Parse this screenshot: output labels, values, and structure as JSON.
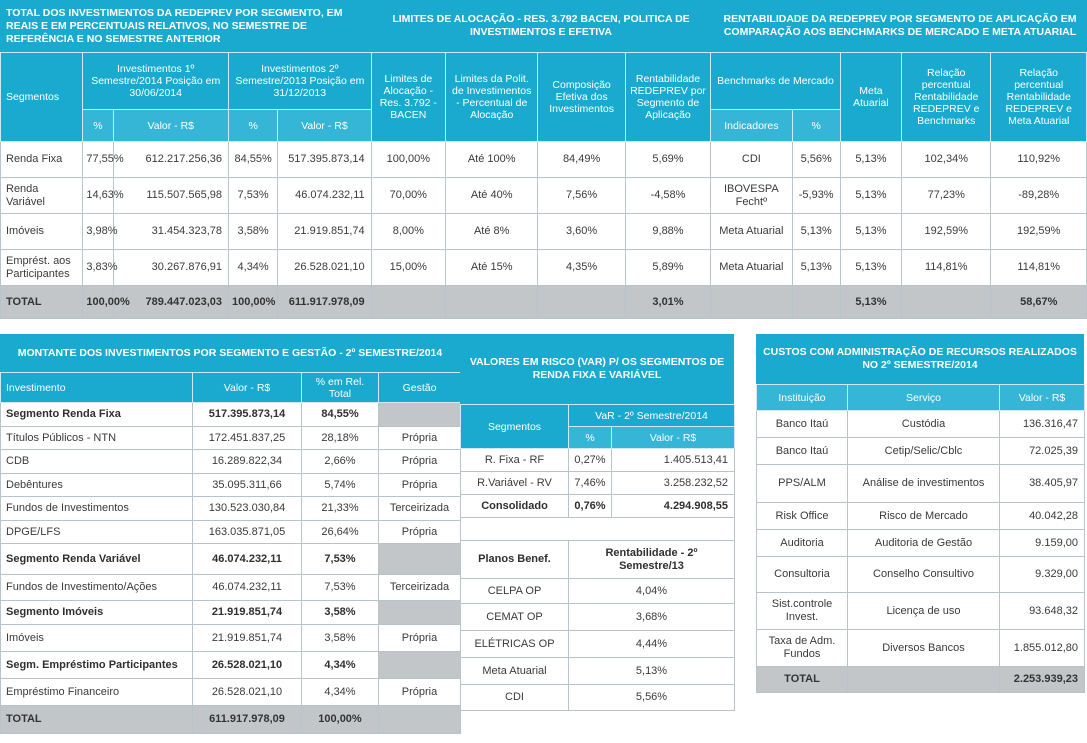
{
  "top": {
    "title1": "TOTAL DOS INVESTIMENTOS DA REDEPREV POR SEGMENTO, EM REAIS E EM PERCENTUAIS RELATIVOS, NO SEMESTRE DE REFERÊNCIA E NO SEMESTRE ANTERIOR",
    "title2": "LIMITES DE ALOCAÇÃO - RES. 3.792 BACEN, POLITICA DE INVESTIMENTOS E EFETIVA",
    "title3": "RENTABILIDADE DA REDEPREV POR SEGMENTO DE APLICAÇÃO EM COMPARAÇÃO AOS BENCHMARKS DE MERCADO E META ATUARIAL",
    "headers": {
      "segmentos": "Segmentos",
      "inv1": "Investimentos 1º Semestre/2014 Posição em 30/06/2014",
      "inv2": "Investimentos 2º Semestre/2013 Posição em 31/12/2013",
      "limites": "Limites de Alocação - Res. 3.792 - BACEN",
      "politica": "Limites da Polit. de Investimentos - Percentual de Alocação",
      "composicao": "Composição Efetiva dos Investimentos",
      "rentabilidade": "Rentabilidade REDEPREV por Segmento de Aplicação",
      "benchmarks": "Benchmarks de Mercado",
      "meta": "Meta Atuarial",
      "rel_bench": "Relação percentual Rentabilidade REDEPREV e Benchmarks",
      "rel_meta": "Relação percentual Rentabilidade REDEPREV e Meta Atuarial",
      "pct": "%",
      "valor": "Valor - R$",
      "indicadores": "Indicadores"
    },
    "rows": [
      {
        "seg": "Renda Fixa",
        "p1": "77,55%",
        "v1": "612.217.256,36",
        "p2": "84,55%",
        "v2": "517.395.873,14",
        "lim": "100,00%",
        "pol": "Até 100%",
        "comp": "84,49%",
        "rent": "5,69%",
        "ind": "CDI",
        "indp": "5,56%",
        "meta": "5,13%",
        "rb": "102,34%",
        "rm": "110,92%"
      },
      {
        "seg": "Renda Variável",
        "p1": "14,63%",
        "v1": "115.507.565,98",
        "p2": "7,53%",
        "v2": "46.074.232,11",
        "lim": "70,00%",
        "pol": "Até 40%",
        "comp": "7,56%",
        "rent": "-4,58%",
        "ind": "IBOVESPA Fechtº",
        "indp": "-5,93%",
        "meta": "5,13%",
        "rb": "77,23%",
        "rm": "-89,28%"
      },
      {
        "seg": "Imóveis",
        "p1": "3,98%",
        "v1": "31.454.323,78",
        "p2": "3,58%",
        "v2": "21.919.851,74",
        "lim": "8,00%",
        "pol": "Até 8%",
        "comp": "3,60%",
        "rent": "9,88%",
        "ind": "Meta Atuarial",
        "indp": "5,13%",
        "meta": "5,13%",
        "rb": "192,59%",
        "rm": "192,59%"
      },
      {
        "seg": "Emprést. aos Participantes",
        "p1": "3,83%",
        "v1": "30.267.876,91",
        "p2": "4,34%",
        "v2": "26.528.021,10",
        "lim": "15,00%",
        "pol": "Até 15%",
        "comp": "4,35%",
        "rent": "5,89%",
        "ind": "Meta Atuarial",
        "indp": "5,13%",
        "meta": "5,13%",
        "rb": "114,81%",
        "rm": "114,81%"
      }
    ],
    "total": {
      "seg": "TOTAL",
      "p1": "100,00%",
      "v1": "789.447.023,03",
      "p2": "100,00%",
      "v2": "611.917.978,09",
      "rent": "3,01%",
      "meta": "5,13%",
      "rm": "58,67%"
    }
  },
  "montante": {
    "title": "MONTANTE DOS INVESTIMENTOS POR SEGMENTO E GESTÃO - 2º SEMESTRE/2014",
    "headers": {
      "inv": "Investimento",
      "valor": "Valor - R$",
      "pct": "% em Rel. Total",
      "gestao": "Gestão"
    },
    "rows": [
      {
        "name": "Segmento Renda Fixa",
        "valor": "517.395.873,14",
        "pct": "84,55%",
        "gestao": "",
        "bold": true
      },
      {
        "name": "Títulos Públicos - NTN",
        "valor": "172.451.837,25",
        "pct": "28,18%",
        "gestao": "Própria"
      },
      {
        "name": "CDB",
        "valor": "16.289.822,34",
        "pct": "2,66%",
        "gestao": "Própria"
      },
      {
        "name": "Debêntures",
        "valor": "35.095.311,66",
        "pct": "5,74%",
        "gestao": "Própria"
      },
      {
        "name": "Fundos de Investimentos",
        "valor": "130.523.030,84",
        "pct": "21,33%",
        "gestao": "Terceirizada"
      },
      {
        "name": "DPGE/LFS",
        "valor": "163.035.871,05",
        "pct": "26,64%",
        "gestao": "Própria"
      },
      {
        "name": "Segmento Renda Variável",
        "valor": "46.074.232,11",
        "pct": "7,53%",
        "gestao": "",
        "bold": true
      },
      {
        "name": "Fundos de Investimento/Ações",
        "valor": "46.074.232,11",
        "pct": "7,53%",
        "gestao": "Terceirizada"
      },
      {
        "name": "Segmento Imóveis",
        "valor": "21.919.851,74",
        "pct": "3,58%",
        "gestao": "",
        "bold": true
      },
      {
        "name": "Imóveis",
        "valor": "21.919.851,74",
        "pct": "3,58%",
        "gestao": "Própria"
      },
      {
        "name": "Segm. Empréstimo Participantes",
        "valor": "26.528.021,10",
        "pct": "4,34%",
        "gestao": "",
        "bold": true
      },
      {
        "name": "Empréstimo Financeiro",
        "valor": "26.528.021,10",
        "pct": "4,34%",
        "gestao": "Própria"
      }
    ],
    "total": {
      "name": "TOTAL",
      "valor": "611.917.978,09",
      "pct": "100,00%"
    }
  },
  "var": {
    "title": "VALORES EM RISCO (VaR) P/ OS SEGMENTOS DE RENDA FIXA E VARIÁVEL",
    "headers": {
      "seg": "Segmentos",
      "var": "VaR - 2º Semestre/2014",
      "pct": "%",
      "valor": "Valor - R$"
    },
    "rows": [
      {
        "seg": "R. Fixa - RF",
        "pct": "0,27%",
        "valor": "1.405.513,41"
      },
      {
        "seg": "R.Variável - RV",
        "pct": "7,46%",
        "valor": "3.258.232,52"
      },
      {
        "seg": "Consolidado",
        "pct": "0,76%",
        "valor": "4.294.908,55",
        "bold": true
      }
    ],
    "planos_header": "Planos Benef.",
    "rent_header": "Rentabilidade - 2º Semestre/13",
    "planos": [
      {
        "name": "CELPA OP",
        "rent": "4,04%"
      },
      {
        "name": "CEMAT OP",
        "rent": "3,68%"
      },
      {
        "name": "ELÉTRICAS OP",
        "rent": "4,44%"
      },
      {
        "name": "Meta Atuarial",
        "rent": "5,13%"
      },
      {
        "name": "CDI",
        "rent": "5,56%"
      }
    ]
  },
  "custos": {
    "title": "CUSTOS COM ADMINISTRAÇÃO DE RECURSOS REALIZADOS NO 2º SEMESTRE/2014",
    "headers": {
      "inst": "Instituição",
      "serv": "Serviço",
      "valor": "Valor - R$"
    },
    "rows": [
      {
        "inst": "Banco Itaú",
        "serv": "Custódia",
        "valor": "136.316,47"
      },
      {
        "inst": "Banco Itaú",
        "serv": "Cetip/Selic/Cblc",
        "valor": "72.025,39"
      },
      {
        "inst": "PPS/ALM",
        "serv": "Análise de investimentos",
        "valor": "38.405,97"
      },
      {
        "inst": "Risk Office",
        "serv": "Risco de Mercado",
        "valor": "40.042,28"
      },
      {
        "inst": "Auditoria",
        "serv": "Auditoria de Gestão",
        "valor": "9.159,00"
      },
      {
        "inst": "Consultoria",
        "serv": "Conselho Consultivo",
        "valor": "9.329,00"
      },
      {
        "inst": "Sist.controle Invest.",
        "serv": "Licença de uso",
        "valor": "93.648,32"
      },
      {
        "inst": "Taxa de Adm. Fundos",
        "serv": "Diversos Bancos",
        "valor": "1.855.012,80"
      }
    ],
    "total": {
      "inst": "TOTAL",
      "valor": "2.253.939,23"
    }
  }
}
